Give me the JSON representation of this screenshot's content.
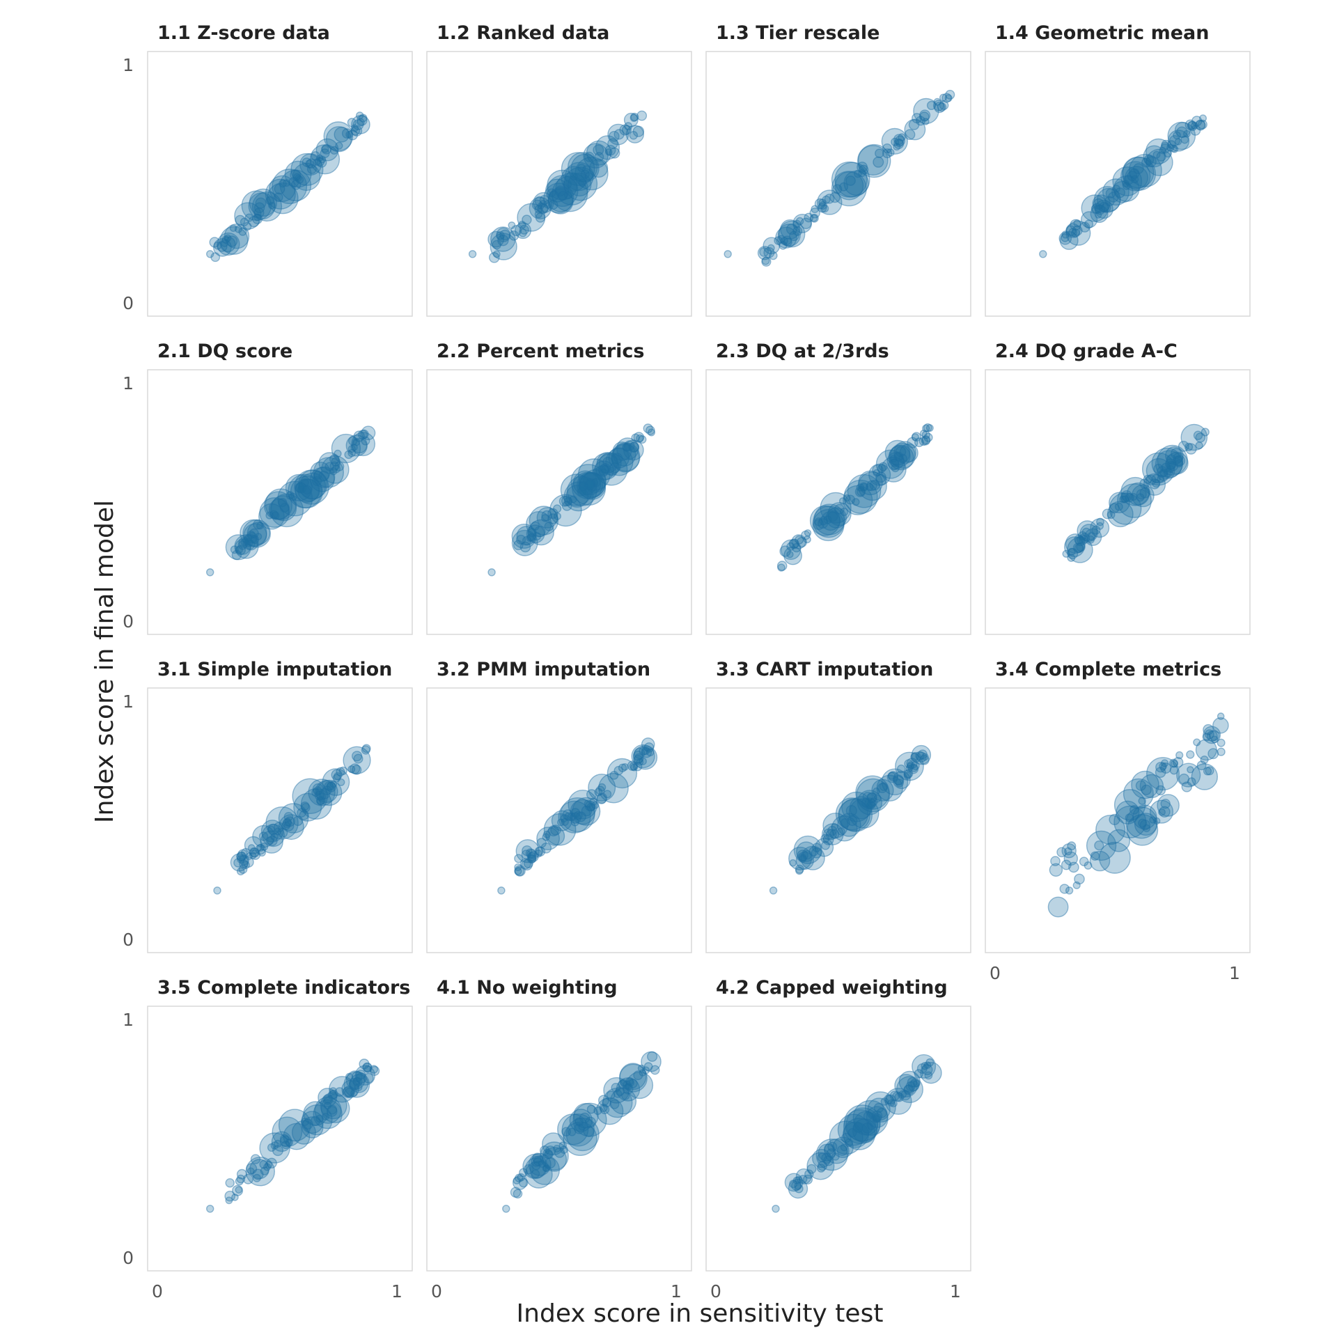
{
  "chart_data": {
    "type": "scatter",
    "xlabel": "Index score in sensitivity test",
    "ylabel": "Index score in final model",
    "xlim": [
      0,
      1
    ],
    "ylim": [
      0,
      1
    ],
    "x_ticks": [
      "0",
      "1"
    ],
    "y_ticks": [
      "0",
      "1"
    ],
    "grid": false,
    "legend": "none",
    "marker_color": "#1f6fa3",
    "marker_opacity": 0.3,
    "size_encoding": "marker area varies per point (larger circles near the center of the range)",
    "facets": [
      {
        "title": "1.1 Z-score data",
        "slope": 1.0,
        "noise": 0.015,
        "xmin": 0.22,
        "xmax": 0.87,
        "low_x": 0.22,
        "low_y": 0.22
      },
      {
        "title": "1.2 Ranked data",
        "slope": 0.8,
        "noise": 0.02,
        "xmin": 0.24,
        "xmax": 0.86,
        "low_x": 0.15,
        "low_y": 0.22
      },
      {
        "title": "1.3 Tier rescale",
        "slope": 0.61,
        "noise": 0.012,
        "xmin": 0.2,
        "xmax": 0.98,
        "low_x": 0.05,
        "low_y": 0.22
      },
      {
        "title": "1.4 Geometric mean",
        "slope": 0.93,
        "noise": 0.012,
        "xmin": 0.28,
        "xmax": 0.87,
        "low_x": 0.2,
        "low_y": 0.22
      },
      {
        "title": "2.1 DQ score",
        "slope": 0.9,
        "noise": 0.014,
        "xmin": 0.32,
        "xmax": 0.89,
        "low_x": 0.22,
        "low_y": 0.22
      },
      {
        "title": "2.2 Percent metrics",
        "slope": 0.91,
        "noise": 0.013,
        "xmin": 0.33,
        "xmax": 0.9,
        "low_x": 0.23,
        "low_y": 0.22
      },
      {
        "title": "2.3 DQ at 2/3rds",
        "slope": 1.0,
        "noise": 0.013,
        "xmin": 0.27,
        "xmax": 0.9,
        "low_x": null,
        "low_y": null
      },
      {
        "title": "2.4 DQ grade A-C",
        "slope": 1.0,
        "noise": 0.014,
        "xmin": 0.29,
        "xmax": 0.88,
        "low_x": null,
        "low_y": null
      },
      {
        "title": "3.1 Simple imputation",
        "slope": 0.9,
        "noise": 0.015,
        "xmin": 0.33,
        "xmax": 0.88,
        "low_x": 0.25,
        "low_y": 0.22
      },
      {
        "title": "3.2 PMM imputation",
        "slope": 0.93,
        "noise": 0.014,
        "xmin": 0.33,
        "xmax": 0.9,
        "low_x": 0.27,
        "low_y": 0.22
      },
      {
        "title": "3.3 CART imputation",
        "slope": 0.97,
        "noise": 0.014,
        "xmin": 0.32,
        "xmax": 0.89,
        "low_x": 0.24,
        "low_y": 0.22
      },
      {
        "title": "3.4 Complete metrics",
        "slope": 0.75,
        "noise": 0.05,
        "xmin": 0.25,
        "xmax": 0.97,
        "low_x": 0.31,
        "low_y": 0.22
      },
      {
        "title": "3.5 Complete indicators",
        "slope": 0.9,
        "noise": 0.02,
        "xmin": 0.29,
        "xmax": 0.92,
        "low_x": 0.22,
        "low_y": 0.22
      },
      {
        "title": "4.1 No weighting",
        "slope": 0.86,
        "noise": 0.02,
        "xmin": 0.33,
        "xmax": 0.93,
        "low_x": 0.29,
        "low_y": 0.22
      },
      {
        "title": "4.2 Capped weighting",
        "slope": 1.0,
        "noise": 0.013,
        "xmin": 0.32,
        "xmax": 0.9,
        "low_x": 0.25,
        "low_y": 0.22
      }
    ]
  }
}
